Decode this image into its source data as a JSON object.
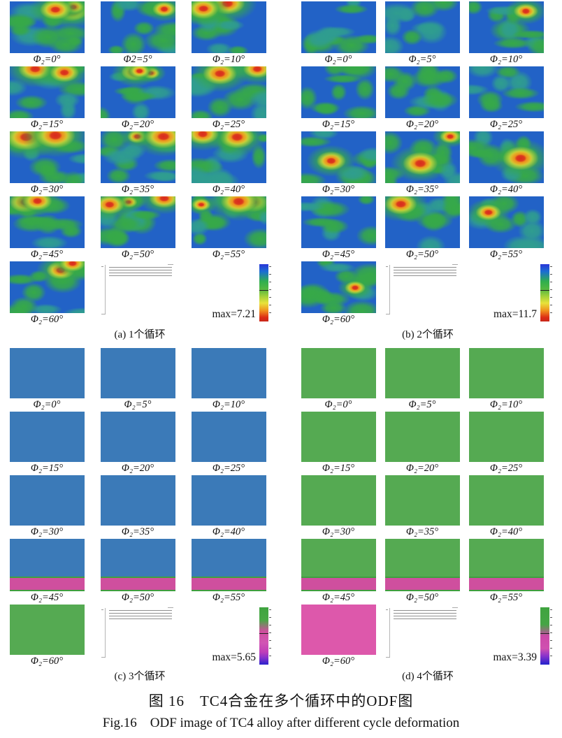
{
  "figure": {
    "caption_zh": "图 16　TC4合金在多个循环中的ODF图",
    "caption_en": "Fig.16　ODF image of TC4 alloy after different cycle deformation"
  },
  "colors": {
    "map_blue_base": "#2262c6",
    "map_mixed_base": "#3b7ab8",
    "map_green_base": "#55aa52",
    "pink_base": "#dd58ab",
    "strip_magenta": "#cf4f9e",
    "blob_green": "#36a948",
    "blob_green_light": "#8cc63f",
    "blob_teal": "#2f9d8f",
    "hot_red": "#d92b1e",
    "hot_orange": "#ef8c1c",
    "hot_yellow": "#e6df35",
    "deep_blue": "#2a2fd8",
    "purple": "#8a2bd0",
    "pink_blob": "#d8489e",
    "pink_light": "#e583c6"
  },
  "panels": [
    {
      "id": "a",
      "caption": "(a) 1个循环",
      "max_label": "max=7.21",
      "labels": [
        "Φ₂=0°",
        "Φ2=5°",
        "Φ₂=10°",
        "Φ₂=15°",
        "Φ₂=20°",
        "Φ₂=25°",
        "Φ₂=30°",
        "Φ₂=35°",
        "Φ₂=40°",
        "Φ₂=45°",
        "Φ₂=50°",
        "Φ₂=55°",
        "Φ₂=60°"
      ],
      "colorbar_stops": [
        [
          "#2a36d8",
          0
        ],
        [
          "#1b6ed2",
          13
        ],
        [
          "#2fae4e",
          30
        ],
        [
          "#55b840",
          44
        ],
        [
          "#a8d23a",
          57
        ],
        [
          "#e8e23a",
          68
        ],
        [
          "#f0921e",
          81
        ],
        [
          "#dd2c16",
          93
        ],
        [
          "#c8281a",
          100
        ]
      ]
    },
    {
      "id": "b",
      "caption": "(b) 2个循环",
      "max_label": "max=11.7",
      "labels": [
        "Φ₂=0°",
        "Φ₂=5°",
        "Φ₂=10°",
        "Φ₂=15°",
        "Φ₂=20°",
        "Φ₂=25°",
        "Φ₂=30°",
        "Φ₂=35°",
        "Φ₂=40°",
        "Φ₂=45°",
        "Φ₂=50°",
        "Φ₂=55°",
        "Φ₂=60°"
      ],
      "colorbar_stops": [
        [
          "#2a36d8",
          0
        ],
        [
          "#1b6ed2",
          13
        ],
        [
          "#2fae4e",
          30
        ],
        [
          "#55b840",
          44
        ],
        [
          "#a8d23a",
          57
        ],
        [
          "#e8e23a",
          68
        ],
        [
          "#f0921e",
          81
        ],
        [
          "#dd2c16",
          93
        ],
        [
          "#c8281a",
          100
        ]
      ]
    },
    {
      "id": "c",
      "caption": "(c) 3个循环",
      "max_label": "max=5.65",
      "labels": [
        "Φ₂=0°",
        "Φ₂=5°",
        "Φ₂=10°",
        "Φ₂=15°",
        "Φ₂=20°",
        "Φ₂=25°",
        "Φ₂=30°",
        "Φ₂=35°",
        "Φ₂=40°",
        "Φ₂=45°",
        "Φ₂=50°",
        "Φ₂=55°",
        "Φ₂=60°"
      ],
      "colorbar_stops": [
        [
          "#3fa43f",
          0
        ],
        [
          "#49a845",
          22
        ],
        [
          "#cf4f9e",
          42
        ],
        [
          "#d155b4",
          62
        ],
        [
          "#c03eb8",
          78
        ],
        [
          "#8731cc",
          88
        ],
        [
          "#2a22cc",
          100
        ]
      ]
    },
    {
      "id": "d",
      "caption": "(d) 4个循环",
      "max_label": "max=3.39",
      "labels": [
        "Φ₂=0°",
        "Φ₂=5°",
        "Φ₂=10°",
        "Φ₂=15°",
        "Φ₂=20°",
        "Φ₂=25°",
        "Φ₂=30°",
        "Φ₂=35°",
        "Φ₂=40°",
        "Φ₂=45°",
        "Φ₂=50°",
        "Φ₂=55°",
        "Φ₂=60°"
      ],
      "colorbar_stops": [
        [
          "#3fa43f",
          0
        ],
        [
          "#45a545",
          30
        ],
        [
          "#cc49a8",
          50
        ],
        [
          "#d050b0",
          72
        ],
        [
          "#8833cc",
          85
        ],
        [
          "#2222cc",
          100
        ]
      ]
    }
  ]
}
